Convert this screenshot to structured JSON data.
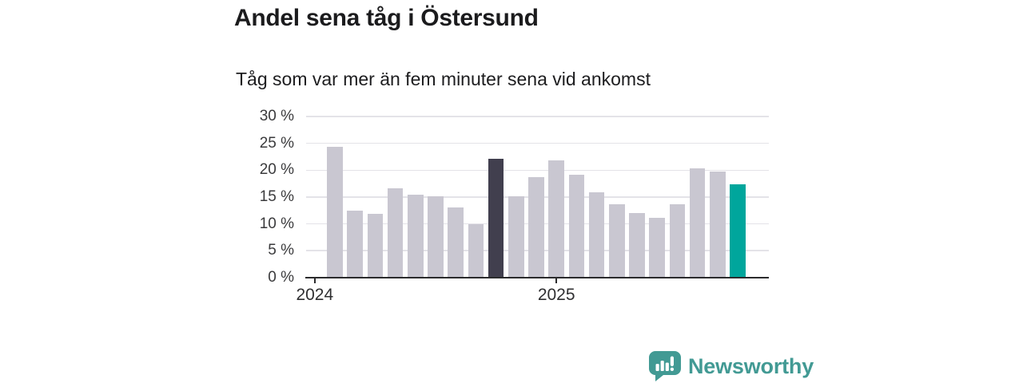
{
  "header": {
    "title": "Andel sena tåg i Östersund",
    "subtitle": "Tåg som var mer än fem minuter sena vid ankomst"
  },
  "chart_data": {
    "type": "bar",
    "title": "Andel sena tåg i Östersund",
    "subtitle": "Tåg som var mer än fem minuter sena vid ankomst",
    "unit": "%",
    "categories": [
      "2024-02",
      "2024-03",
      "2024-04",
      "2024-05",
      "2024-06",
      "2024-07",
      "2024-08",
      "2024-09",
      "2024-10",
      "2024-11",
      "2024-12",
      "2025-01",
      "2025-02",
      "2025-03",
      "2025-04",
      "2025-05",
      "2025-06",
      "2025-07",
      "2025-08",
      "2025-09",
      "2025-10"
    ],
    "values": [
      24.3,
      12.4,
      11.8,
      16.6,
      15.5,
      15.1,
      13.1,
      9.9,
      22.1,
      15.1,
      18.7,
      21.8,
      19.2,
      15.9,
      13.6,
      12.0,
      11.1,
      13.6,
      20.3,
      19.8,
      17.4
    ],
    "highlight": {
      "dark_index": 8,
      "accent_index": 20
    },
    "y_ticks": [
      0,
      5,
      10,
      15,
      20,
      25,
      30
    ],
    "y_tick_suffix": " %",
    "ylim": [
      0,
      30
    ],
    "x_ticks": [
      {
        "label": "2024",
        "month_index": -1
      },
      {
        "label": "2025",
        "month_index": 11
      }
    ],
    "grid": "horizontal",
    "legend": "none",
    "colors": {
      "bar": "#c9c7d1",
      "dark": "#413f4e",
      "accent": "#00a69c",
      "axis": "#2b2b2d",
      "gridline": "#e4e3e8",
      "tick_text": "#3a3a3c"
    }
  },
  "footer": {
    "brand": "Newsworthy",
    "brand_color": "#429a94",
    "logo_icon": "bar-chart-speech-bubble"
  }
}
